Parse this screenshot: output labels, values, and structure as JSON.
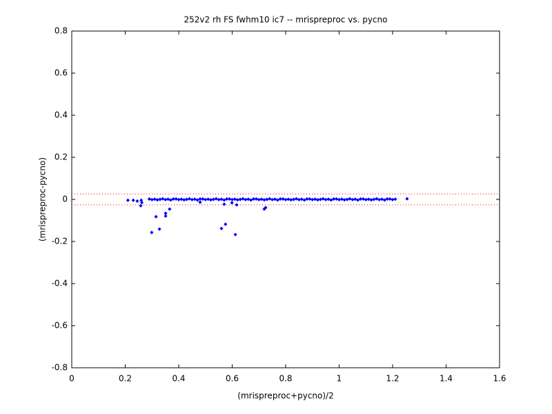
{
  "chart_data": {
    "type": "scatter",
    "title": "252v2 rh FS fwhm10 ic7 -- mrispreproc vs. pycno",
    "x_label": "(mrispreproc+pycno)/2",
    "y_label": "(mrispreproc-pycno)",
    "color": "#0000ff",
    "x": [
      0.21,
      0.23,
      0.245,
      0.26,
      0.258,
      0.262,
      0.299,
      0.315,
      0.328,
      0.351,
      0.351,
      0.366,
      0.48,
      0.56,
      0.575,
      0.57,
      0.599,
      0.612,
      0.617,
      0.725,
      0.72,
      1.254,
      0.29,
      0.3,
      0.31,
      0.32,
      0.33,
      0.34,
      0.35,
      0.36,
      0.37,
      0.38,
      0.39,
      0.4,
      0.41,
      0.42,
      0.43,
      0.44,
      0.45,
      0.46,
      0.47,
      0.48,
      0.49,
      0.5,
      0.51,
      0.52,
      0.53,
      0.54,
      0.55,
      0.56,
      0.57,
      0.58,
      0.59,
      0.6,
      0.61,
      0.62,
      0.63,
      0.64,
      0.65,
      0.66,
      0.67,
      0.68,
      0.69,
      0.7,
      0.71,
      0.72,
      0.73,
      0.74,
      0.75,
      0.76,
      0.77,
      0.78,
      0.79,
      0.8,
      0.81,
      0.82,
      0.83,
      0.84,
      0.85,
      0.86,
      0.87,
      0.88,
      0.89,
      0.9,
      0.91,
      0.92,
      0.93,
      0.94,
      0.95,
      0.96,
      0.97,
      0.98,
      0.99,
      1,
      1.01,
      1.02,
      1.03,
      1.04,
      1.05,
      1.06,
      1.07,
      1.08,
      1.09,
      1.1,
      1.11,
      1.12,
      1.13,
      1.14,
      1.15,
      1.16,
      1.17,
      1.18,
      1.19,
      1.2,
      1.21
    ],
    "values": [
      -0.004,
      -0.004,
      -0.008,
      -0.004,
      -0.03,
      -0.015,
      -0.157,
      -0.082,
      -0.141,
      -0.066,
      -0.079,
      -0.046,
      -0.013,
      -0.138,
      -0.118,
      -0.023,
      -0.016,
      -0.167,
      -0.026,
      -0.039,
      -0.046,
      0.003,
      0.002,
      -0.001,
      0.001,
      -0.002,
      0,
      0.003,
      -0.001,
      0.001,
      -0.003,
      0.002,
      0.002,
      -0.001,
      0.001,
      -0.002,
      0,
      0.003,
      -0.001,
      0.001,
      -0.003,
      0.002,
      0.002,
      -0.001,
      0.001,
      -0.002,
      0,
      0.003,
      -0.001,
      0.001,
      -0.003,
      0.002,
      0.002,
      -0.001,
      0.001,
      -0.002,
      0,
      0.003,
      -0.001,
      0.001,
      -0.003,
      0.002,
      0.002,
      -0.001,
      0.001,
      -0.002,
      0,
      0.003,
      -0.001,
      0.001,
      -0.003,
      0.002,
      0.002,
      -0.001,
      0.001,
      -0.002,
      0,
      0.003,
      -0.001,
      0.001,
      -0.003,
      0.002,
      0.002,
      -0.001,
      0.001,
      -0.002,
      0,
      0.003,
      -0.001,
      0.001,
      -0.003,
      0.002,
      0.002,
      -0.001,
      0.001,
      -0.002,
      0,
      0.003,
      -0.001,
      0.001,
      -0.003,
      0.002,
      0.002,
      -0.001,
      0.001,
      -0.002,
      0,
      0.003,
      -0.001,
      0.001,
      -0.003,
      0.002,
      0.002,
      -0.001,
      0.001
    ],
    "reference_lines": [
      0.026,
      -0.026
    ],
    "reference_color": "#ff0000",
    "xlim": [
      0,
      1.6
    ],
    "xticks": [
      0,
      0.2,
      0.4,
      0.6,
      0.8,
      1,
      1.2,
      1.4,
      1.6
    ],
    "ylim": [
      -0.8,
      0.8
    ],
    "yticks": [
      -0.8,
      -0.6,
      -0.4,
      -0.2,
      0,
      0.2,
      0.4,
      0.6,
      0.8
    ],
    "grid": false
  }
}
